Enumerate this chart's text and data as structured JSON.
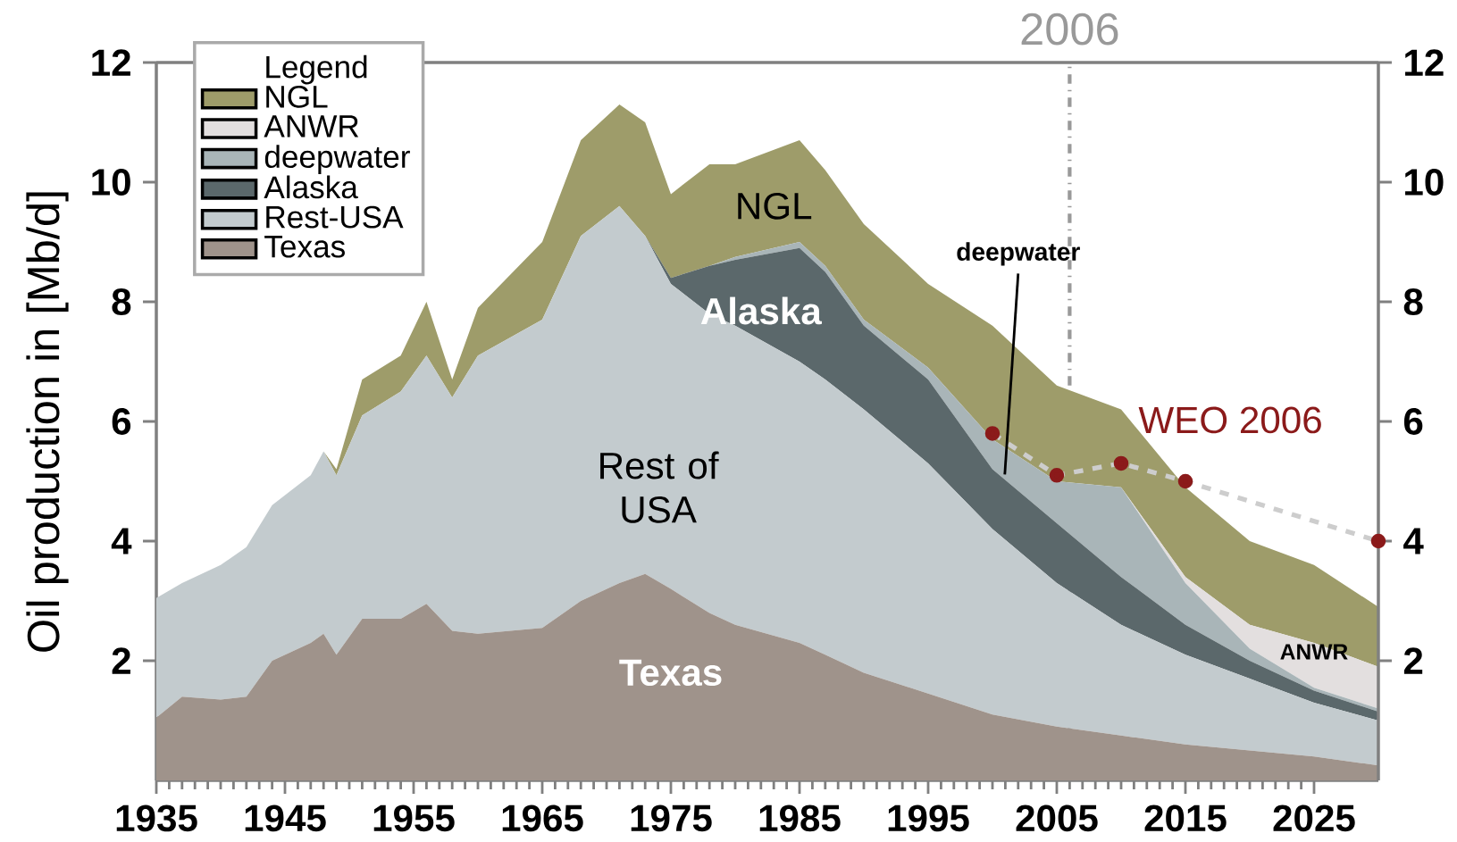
{
  "chart_data": {
    "type": "area",
    "stacked": true,
    "ylabel": "Oil production in [Mb/d]",
    "legend_title": "Legend",
    "legend": "top left",
    "x": [
      1935,
      1937,
      1940,
      1942,
      1944,
      1947,
      1948,
      1949,
      1951,
      1954,
      1956,
      1958,
      1960,
      1965,
      1968,
      1971,
      1973,
      1975,
      1978,
      1980,
      1985,
      1987,
      1990,
      1995,
      2000,
      2005,
      2010,
      2015,
      2020,
      2025,
      2030
    ],
    "series": [
      {
        "name": "Texas",
        "color": "#9f938b",
        "values": [
          1.05,
          1.4,
          1.35,
          1.4,
          2.0,
          2.3,
          2.45,
          2.1,
          2.7,
          2.7,
          2.95,
          2.5,
          2.45,
          2.55,
          3.0,
          3.3,
          3.45,
          3.2,
          2.8,
          2.6,
          2.3,
          2.1,
          1.8,
          1.45,
          1.1,
          0.9,
          0.75,
          0.6,
          0.5,
          0.4,
          0.25
        ]
      },
      {
        "name": "Rest-USA",
        "color": "#c3cbce",
        "values": [
          2.0,
          1.9,
          2.25,
          2.5,
          2.6,
          2.8,
          3.05,
          3.0,
          3.4,
          3.8,
          4.15,
          3.9,
          4.65,
          5.15,
          6.1,
          6.3,
          5.65,
          5.1,
          5.0,
          5.0,
          4.7,
          4.6,
          4.4,
          3.85,
          3.1,
          2.4,
          1.85,
          1.5,
          1.2,
          0.9,
          0.75
        ]
      },
      {
        "name": "Alaska",
        "color": "#5b686b",
        "values": [
          0,
          0,
          0,
          0,
          0,
          0,
          0,
          0,
          0,
          0,
          0,
          0,
          0,
          0,
          0,
          0,
          0,
          0.1,
          0.8,
          1.1,
          1.9,
          1.8,
          1.4,
          1.4,
          1.0,
          1.0,
          0.8,
          0.5,
          0.3,
          0.2,
          0.15
        ]
      },
      {
        "name": "deepwater",
        "color": "#a9b5b8",
        "values": [
          0,
          0,
          0,
          0,
          0,
          0,
          0,
          0,
          0,
          0,
          0,
          0,
          0,
          0,
          0,
          0,
          0,
          0,
          0,
          0.05,
          0.1,
          0.1,
          0.1,
          0.2,
          0.5,
          0.7,
          1.5,
          0.7,
          0.2,
          0.05,
          0.05
        ]
      },
      {
        "name": "ANWR",
        "color": "#e3dfdf",
        "values": [
          0,
          0,
          0,
          0,
          0,
          0,
          0,
          0,
          0,
          0,
          0,
          0,
          0,
          0,
          0,
          0,
          0,
          0,
          0,
          0,
          0,
          0,
          0,
          0,
          0,
          0,
          0,
          0.1,
          0.4,
          0.75,
          0.7
        ]
      },
      {
        "name": "NGL",
        "color": "#9e9c6a",
        "values": [
          0,
          0,
          0,
          0,
          0,
          0,
          0,
          0.1,
          0.6,
          0.6,
          0.9,
          0.3,
          0.8,
          1.3,
          1.6,
          1.7,
          1.9,
          1.4,
          1.7,
          1.55,
          1.7,
          1.6,
          1.6,
          1.4,
          1.9,
          1.6,
          1.3,
          1.5,
          1.4,
          1.3,
          1.0
        ]
      },
      {
        "name": "WEO 2006",
        "type": "line",
        "axis": "y2",
        "color": "#8b1a1a",
        "marker": "circle",
        "line_style": "dashed",
        "x": [
          2000,
          2005,
          2010,
          2015,
          2030
        ],
        "values": [
          5.8,
          5.1,
          5.3,
          5.0,
          4.0
        ]
      }
    ],
    "xlim": [
      1935,
      2030
    ],
    "xticks": [
      1935,
      1945,
      1955,
      1965,
      1975,
      1985,
      1995,
      2005,
      2015,
      2025
    ],
    "ylim": [
      0,
      12
    ],
    "yticks": [
      2,
      4,
      6,
      8,
      10,
      12
    ],
    "y2lim": [
      0,
      12
    ],
    "y2ticks": [
      2,
      4,
      6,
      8,
      10,
      12
    ],
    "ref_lines": [
      {
        "axis": "x",
        "value": 2006,
        "label": "2006",
        "color": "#999999",
        "line_style": "dashed"
      }
    ],
    "annotations": [
      "NGL",
      "Alaska",
      "Rest of USA",
      "Texas",
      "deepwater",
      "ANWR"
    ]
  }
}
